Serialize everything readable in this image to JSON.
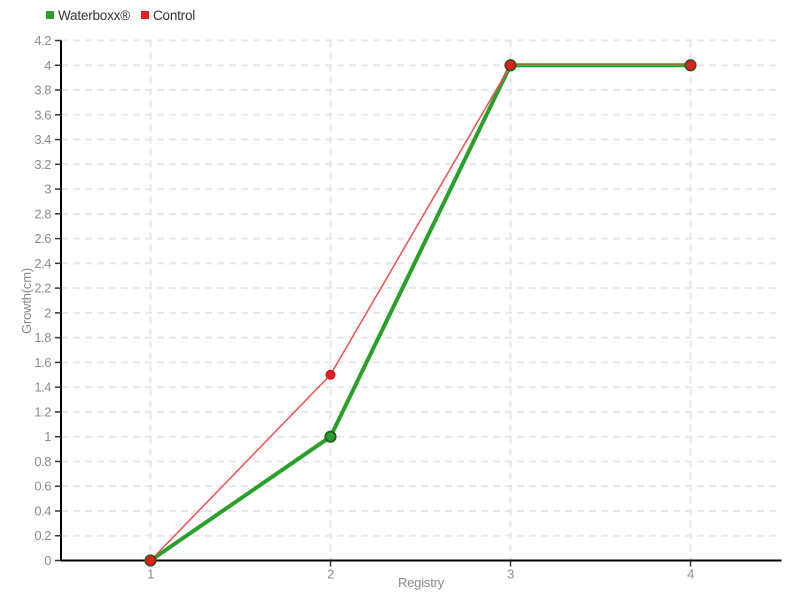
{
  "styles": {
    "background": "#ffffff",
    "grid_color": "#e7e7e7",
    "axis_color": "#000000",
    "tick_color": "#333333",
    "tick_label_color": "#8c8c8c",
    "axis_title_color": "#8a8a8a",
    "legend_text_color": "#333333"
  },
  "chart_data": {
    "type": "line",
    "title": "",
    "xlabel": "Registry",
    "ylabel": "Growth(cm)",
    "x": [
      1,
      2,
      3,
      4
    ],
    "x_tick_labels": [
      "1",
      "2",
      "3",
      "4"
    ],
    "xlim": [
      1,
      4
    ],
    "ylim": [
      0,
      4.2
    ],
    "y_tick_step": 0.2,
    "y_tick_labels": [
      "0",
      "0.2",
      "0.4",
      "0.6",
      "0.8",
      "1",
      "1.2",
      "1.4",
      "1.6",
      "1.8",
      "2",
      "2.2",
      "2.4",
      "2.6",
      "2.8",
      "3",
      "3.2",
      "3.4",
      "3.6",
      "3.8",
      "4",
      "4.2"
    ],
    "grid": "dashed",
    "legend_position": "top-left",
    "series": [
      {
        "name": "Waterboxx®",
        "values": [
          0,
          1,
          4,
          4
        ],
        "color": "#2aa02a",
        "marker_fill": "#2aa02a",
        "marker_border": "#1b611b",
        "line_width": 4,
        "marker_radius": 5.2,
        "marker_border_width": 1.8
      },
      {
        "name": "Control",
        "values": [
          0,
          1.5,
          4,
          4
        ],
        "color": "#f05050",
        "marker_fill": "#e02020",
        "marker_border": "#bd1717",
        "line_width": 1.5,
        "marker_radius": 4.6,
        "marker_border_width": 0.8
      }
    ]
  }
}
